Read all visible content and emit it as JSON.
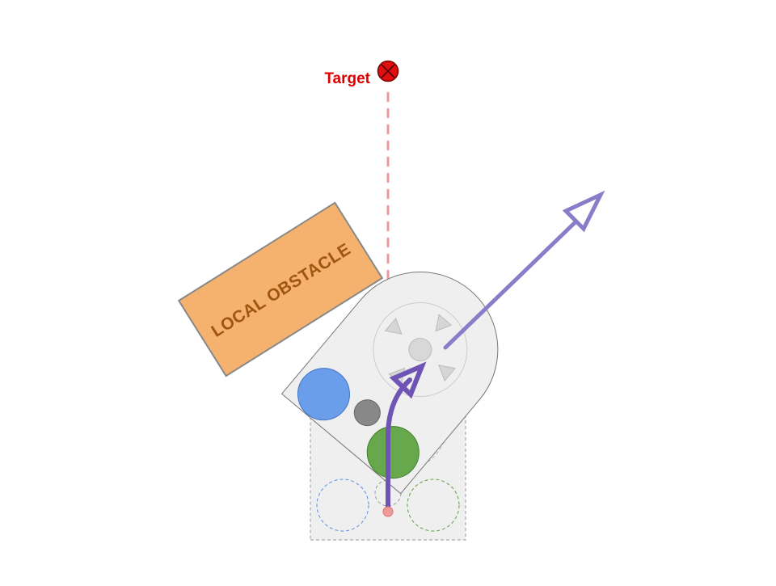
{
  "target": {
    "label": "Target",
    "color": "#dd0000",
    "marker_icon": "x-circle-icon",
    "line_color": "#ef9a9a"
  },
  "obstacle": {
    "label": "LOCAL OBSTACLE",
    "fill": "#f4b26e",
    "text_color": "#a0560f",
    "border": "#888888"
  },
  "robot": {
    "body_fill": "#efefef",
    "outline": "#777777",
    "ghost_outline": "#999999",
    "blue_circle": "#6b9eea",
    "green_circle": "#67a84d",
    "hub": "#888888"
  },
  "arrows": {
    "path_color": "#6f54b5",
    "heading_color": "#8a7cc8"
  }
}
